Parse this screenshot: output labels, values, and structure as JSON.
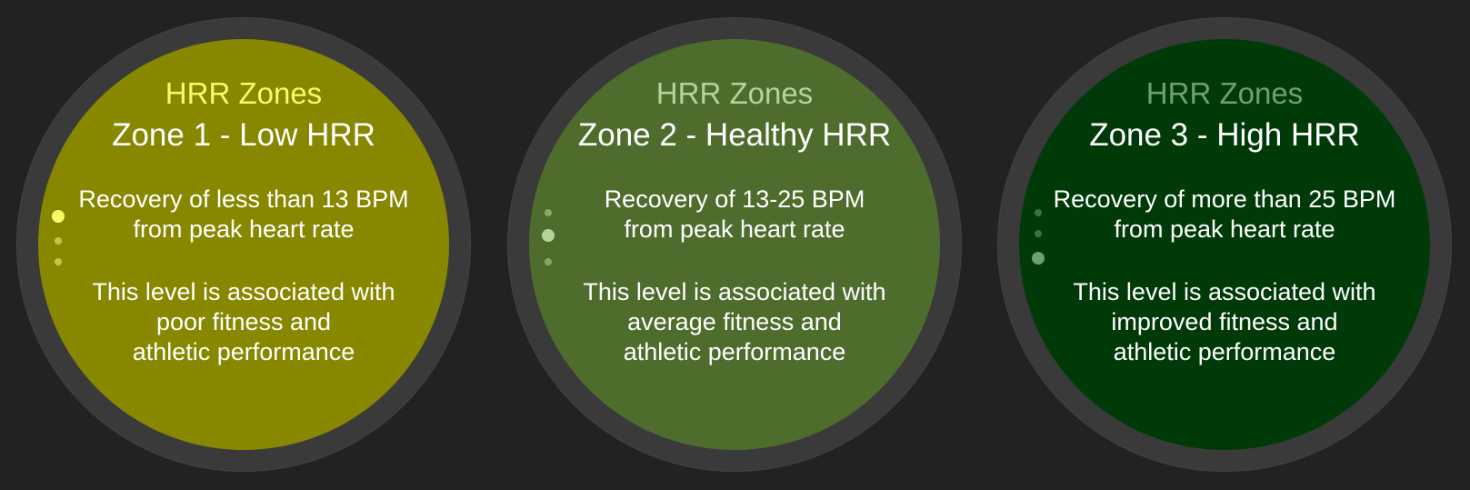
{
  "watches": [
    {
      "header": "HRR Zones",
      "title": "Zone 1 - Low HRR",
      "recovery": [
        "Recovery of less than 13 BPM",
        "from peak heart rate"
      ],
      "association": [
        "This level is associated with",
        "poor fitness and",
        "athletic performance"
      ],
      "active_page": 1,
      "page_count": 3,
      "colors": {
        "face": "#878700",
        "header": "#fafa67"
      }
    },
    {
      "header": "HRR Zones",
      "title": "Zone 2 - Healthy HRR",
      "recovery": [
        "Recovery of 13-25 BPM",
        "from peak heart rate"
      ],
      "association": [
        "This level is associated with",
        "average fitness and",
        "athletic performance"
      ],
      "active_page": 2,
      "page_count": 3,
      "colors": {
        "face": "#4e6d2d",
        "header": "#b3d49a"
      }
    },
    {
      "header": "HRR Zones",
      "title": "Zone 3 - High HRR",
      "recovery": [
        "Recovery of more than 25 BPM",
        "from peak heart rate"
      ],
      "association": [
        "This level is associated with",
        "improved fitness and",
        "athletic performance"
      ],
      "active_page": 3,
      "page_count": 3,
      "colors": {
        "face": "#003a09",
        "header": "#6fa070"
      }
    }
  ]
}
